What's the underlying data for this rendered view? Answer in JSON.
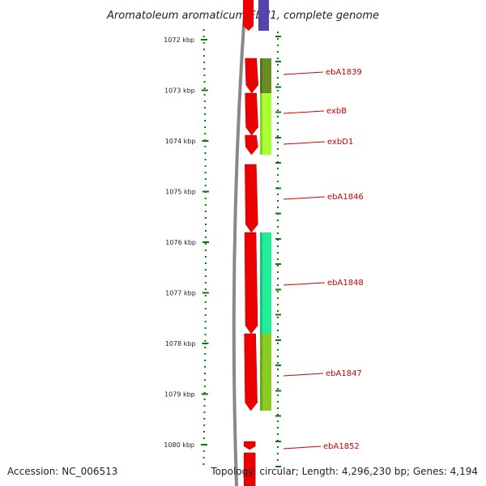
{
  "title": "Aromatoleum aromaticum EbN1, complete genome",
  "footer": {
    "accession": "Accession: NC_006513",
    "info": "Topology: circular; Length: 4,296,230 bp; Genes: 4,194"
  },
  "colors": {
    "tick": "#0a7a0a",
    "backbone": "#888888",
    "gene_red": "#ee0000",
    "label": "#cc0000"
  },
  "ticks": [
    "1072 kbp",
    "1073 kbp",
    "1074 kbp",
    "1075 kbp",
    "1076 kbp",
    "1077 kbp",
    "1078 kbp",
    "1079 kbp",
    "1080 kbp"
  ],
  "genes": [
    {
      "label": "ebA1839",
      "cog_color": "#6b8e23"
    },
    {
      "label": "exbB",
      "cog_color": "#aaff33"
    },
    {
      "label": "exbD1",
      "cog_color": "#aaff33"
    },
    {
      "label": "ebA1846",
      "cog_color": ""
    },
    {
      "label": "ebA1848",
      "cog_color": "#22ee99"
    },
    {
      "label": "ebA1847",
      "cog_color": "#88cc22"
    },
    {
      "label": "ebA1852",
      "cog_color": ""
    }
  ]
}
